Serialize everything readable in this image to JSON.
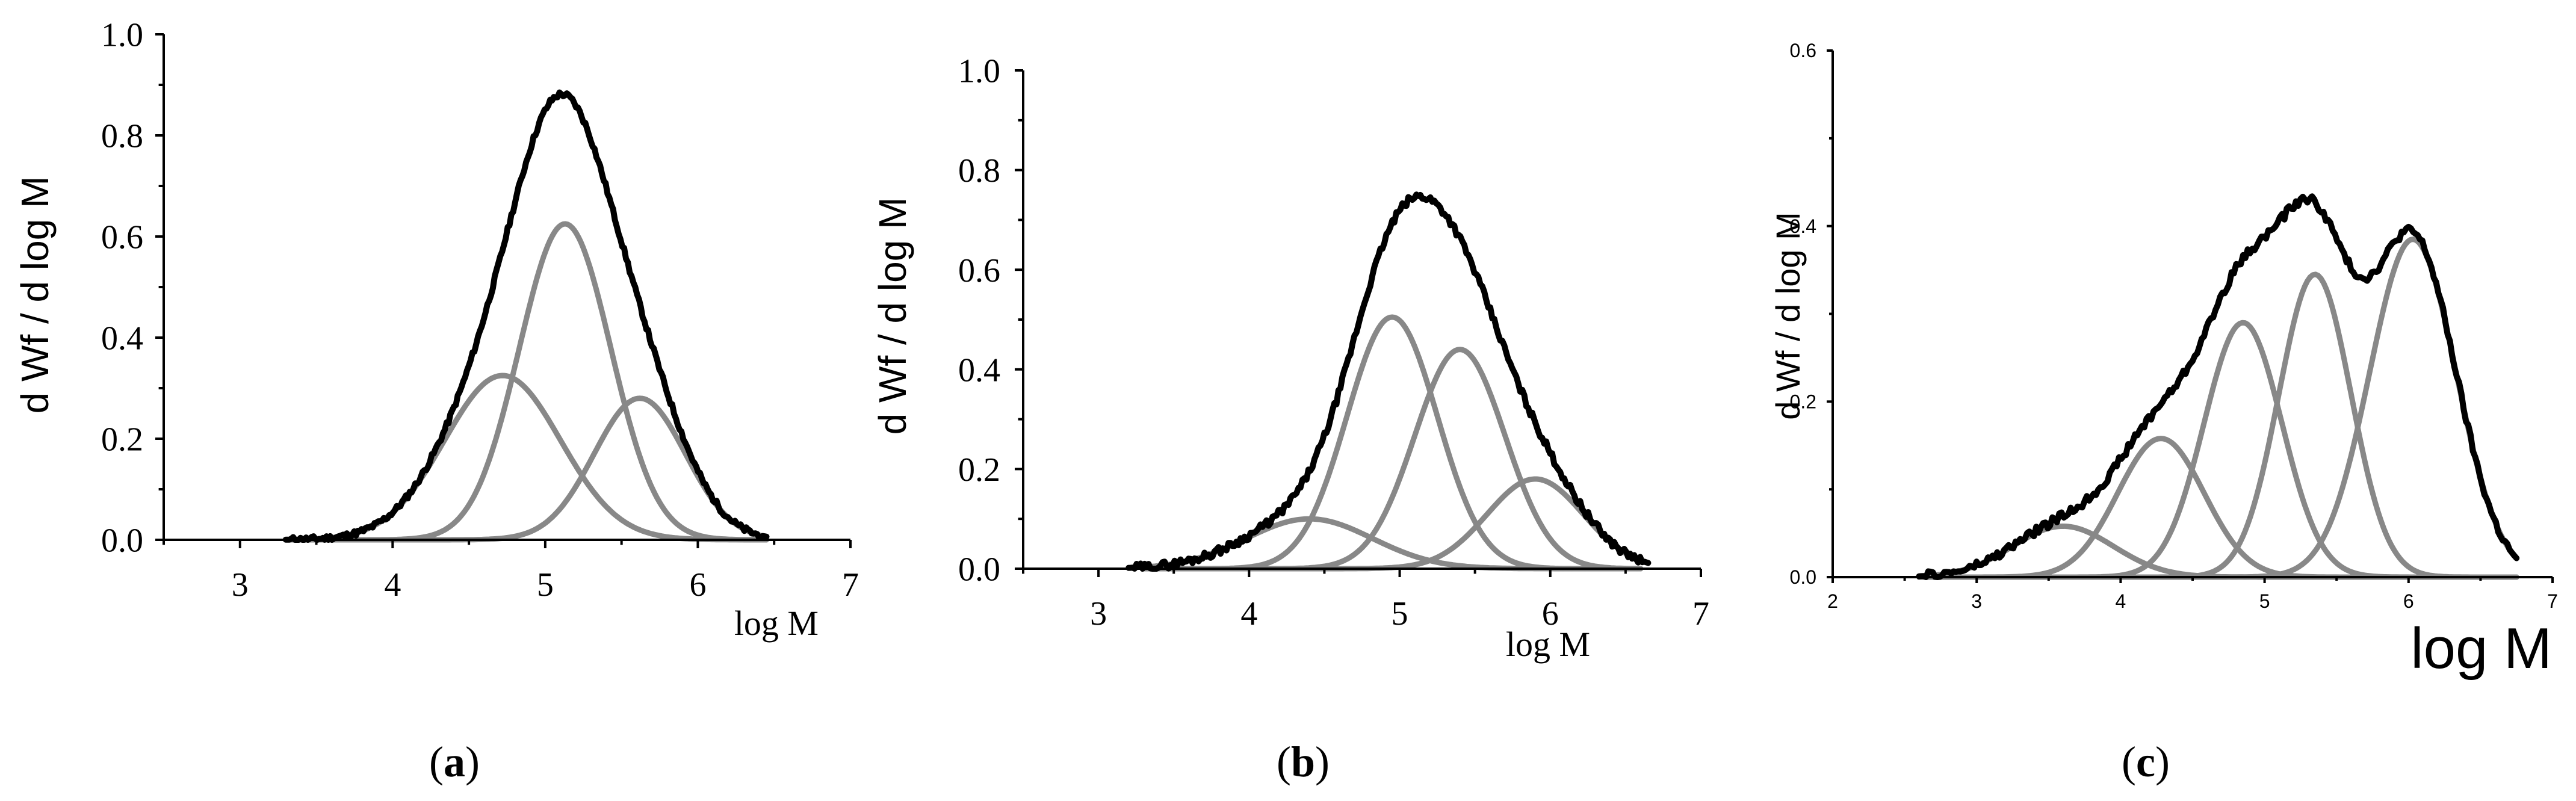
{
  "figure": {
    "panel_labels": [
      {
        "open": "(",
        "letter": "a",
        "close": ")"
      },
      {
        "open": "(",
        "letter": "b",
        "close": ")"
      },
      {
        "open": "(",
        "letter": "c",
        "close": ")"
      }
    ]
  },
  "chart_data": [
    {
      "type": "line",
      "panel": "a",
      "xlabel": "log M",
      "ylabel": "d Wf / d log M",
      "xlim": [
        2.5,
        7
      ],
      "ylim": [
        0,
        1.0
      ],
      "xticks": [
        3,
        4,
        5,
        6,
        7
      ],
      "xtick_labels": [
        "3",
        "4",
        "5",
        "6",
        "7"
      ],
      "yticks": [
        0,
        0.2,
        0.4,
        0.6,
        0.8,
        1.0
      ],
      "ytick_labels": [
        "0.0",
        "0.2",
        "0.4",
        "0.6",
        "0.8",
        "1.0"
      ],
      "total": {
        "name": "total",
        "color": "#000000",
        "x_range": [
          3.3,
          6.45
        ],
        "noise": 0.006
      },
      "components": [
        {
          "name": "peak 1",
          "center": 4.72,
          "amplitude": 0.325,
          "sigma": 0.38,
          "color": "#888888"
        },
        {
          "name": "peak 2",
          "center": 5.13,
          "amplitude": 0.625,
          "sigma": 0.3,
          "color": "#888888"
        },
        {
          "name": "peak 3",
          "center": 5.62,
          "amplitude": 0.28,
          "sigma": 0.3,
          "color": "#888888"
        }
      ],
      "component_x_range": [
        3.3,
        6.45
      ]
    },
    {
      "type": "line",
      "panel": "b",
      "xlabel": "log M",
      "ylabel": "d Wf / d log M",
      "xlim": [
        2.5,
        7
      ],
      "ylim": [
        0,
        1.0
      ],
      "xticks": [
        3,
        4,
        5,
        6,
        7
      ],
      "xtick_labels": [
        "3",
        "4",
        "5",
        "6",
        "7"
      ],
      "yticks": [
        0,
        0.2,
        0.4,
        0.6,
        0.8,
        1.0
      ],
      "ytick_labels": [
        "0.0",
        "0.2",
        "0.4",
        "0.6",
        "0.8",
        "1.0"
      ],
      "total": {
        "name": "total",
        "color": "#000000",
        "x_range": [
          3.2,
          6.65
        ],
        "noise": 0.008
      },
      "components": [
        {
          "name": "peak 1",
          "center": 4.4,
          "amplitude": 0.1,
          "sigma": 0.42,
          "color": "#888888"
        },
        {
          "name": "peak 2",
          "center": 4.95,
          "amplitude": 0.505,
          "sigma": 0.3,
          "color": "#888888"
        },
        {
          "name": "peak 3",
          "center": 5.4,
          "amplitude": 0.44,
          "sigma": 0.3,
          "color": "#888888"
        },
        {
          "name": "peak 4",
          "center": 5.9,
          "amplitude": 0.18,
          "sigma": 0.32,
          "color": "#888888"
        }
      ],
      "component_x_range": [
        3.3,
        6.6
      ]
    },
    {
      "type": "line",
      "panel": "c",
      "xlabel": "log M",
      "ylabel": "d Wf / d log M",
      "xlim": [
        2,
        7
      ],
      "ylim": [
        0,
        0.6
      ],
      "xticks": [
        2,
        3,
        4,
        5,
        6,
        7
      ],
      "xtick_labels": [
        "2",
        "3",
        "4",
        "5",
        "6",
        "7"
      ],
      "yticks": [
        0,
        0.2,
        0.4,
        0.6
      ],
      "ytick_labels": [
        "0.0",
        "0.2",
        "0.4",
        "0.6"
      ],
      "total": {
        "name": "total",
        "color": "#000000",
        "x_range": [
          2.6,
          6.75
        ],
        "noise": 0.005
      },
      "components": [
        {
          "name": "peak 1",
          "center": 3.6,
          "amplitude": 0.058,
          "sigma": 0.35,
          "color": "#888888"
        },
        {
          "name": "peak 2",
          "center": 4.28,
          "amplitude": 0.158,
          "sigma": 0.3,
          "color": "#888888"
        },
        {
          "name": "peak 3",
          "center": 4.85,
          "amplitude": 0.29,
          "sigma": 0.27,
          "color": "#888888"
        },
        {
          "name": "peak 4",
          "center": 5.35,
          "amplitude": 0.345,
          "sigma": 0.25,
          "color": "#888888"
        },
        {
          "name": "peak 5",
          "center": 6.03,
          "amplitude": 0.385,
          "sigma": 0.3,
          "color": "#888888"
        }
      ],
      "component_x_range": [
        2.6,
        6.75
      ]
    }
  ]
}
